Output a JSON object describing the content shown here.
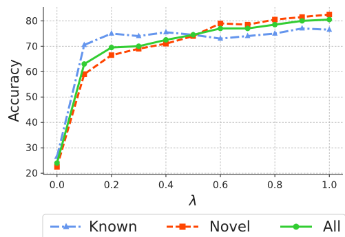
{
  "chart_data": {
    "type": "line",
    "title": "",
    "xlabel": "λ",
    "ylabel": "Accuracy",
    "x": [
      0.0,
      0.1,
      0.2,
      0.3,
      0.4,
      0.5,
      0.6,
      0.7,
      0.8,
      0.9,
      1.0
    ],
    "x_ticks": [
      "0.0",
      "0.2",
      "0.4",
      "0.6",
      "0.8",
      "1.0"
    ],
    "y_ticks": [
      "20",
      "30",
      "40",
      "50",
      "60",
      "70",
      "80"
    ],
    "xlim": [
      -0.05,
      1.05
    ],
    "ylim": [
      19.5,
      85.5
    ],
    "grid": true,
    "legend_position": "bottom",
    "series": [
      {
        "name": "Known",
        "color": "#6495ED",
        "line_style": "dash-dot",
        "marker": "triangle",
        "values": [
          26.5,
          70.5,
          75.0,
          74.0,
          75.5,
          74.5,
          73.0,
          74.0,
          75.0,
          77.0,
          76.5
        ]
      },
      {
        "name": "Novel",
        "color": "#FF4500",
        "line_style": "dashed",
        "marker": "square",
        "values": [
          22.5,
          59.0,
          66.5,
          69.0,
          71.0,
          74.0,
          79.0,
          78.5,
          80.5,
          81.5,
          82.5
        ]
      },
      {
        "name": "All",
        "color": "#32CD32",
        "line_style": "solid",
        "marker": "circle",
        "values": [
          24.0,
          63.0,
          69.5,
          70.0,
          72.5,
          74.5,
          77.0,
          77.0,
          78.5,
          80.0,
          80.5
        ]
      }
    ]
  }
}
